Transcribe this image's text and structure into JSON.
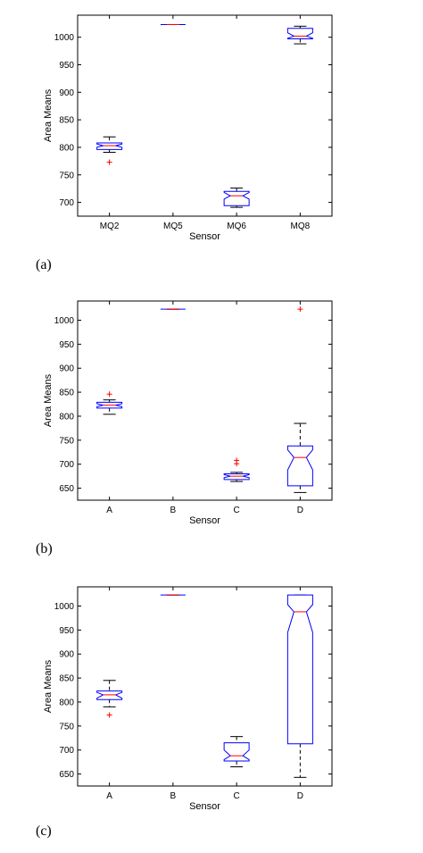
{
  "chart_data": [
    {
      "type": "box",
      "caption": "(a)",
      "xlabel": "Sensor",
      "ylabel": "Area Means",
      "ylim": [
        675,
        1040
      ],
      "yticks": [
        700,
        750,
        800,
        850,
        900,
        950,
        1000
      ],
      "categories": [
        "MQ2",
        "MQ5",
        "MQ6",
        "MQ8"
      ],
      "boxes": [
        {
          "min": 791,
          "q1": 796,
          "median": 803,
          "q3": 808,
          "max": 819,
          "notch_low": 800,
          "notch_high": 806,
          "outliers": [
            773
          ]
        },
        {
          "min": 1023,
          "q1": 1023,
          "median": 1023,
          "q3": 1023,
          "max": 1023,
          "notch_low": 1023,
          "notch_high": 1023,
          "outliers": []
        },
        {
          "min": 691,
          "q1": 694,
          "median": 712,
          "q3": 720,
          "max": 726,
          "notch_low": 706,
          "notch_high": 718,
          "outliers": []
        },
        {
          "min": 988,
          "q1": 997,
          "median": 1002,
          "q3": 1016,
          "max": 1020,
          "notch_low": 998,
          "notch_high": 1008,
          "outliers": []
        }
      ]
    },
    {
      "type": "box",
      "caption": "(b)",
      "xlabel": "Sensor",
      "ylabel": "Area Means",
      "ylim": [
        625,
        1040
      ],
      "yticks": [
        650,
        700,
        750,
        800,
        850,
        900,
        950,
        1000
      ],
      "categories": [
        "A",
        "B",
        "C",
        "D"
      ],
      "boxes": [
        {
          "min": 804,
          "q1": 817,
          "median": 823,
          "q3": 829,
          "max": 834,
          "notch_low": 820,
          "notch_high": 826,
          "outliers": [
            846
          ]
        },
        {
          "min": 1023,
          "q1": 1023,
          "median": 1023,
          "q3": 1023,
          "max": 1023,
          "notch_low": 1023,
          "notch_high": 1023,
          "outliers": []
        },
        {
          "min": 664,
          "q1": 668,
          "median": 675,
          "q3": 680,
          "max": 683,
          "notch_low": 672,
          "notch_high": 678,
          "outliers": [
            701,
            708
          ]
        },
        {
          "min": 641,
          "q1": 655,
          "median": 714,
          "q3": 738,
          "max": 785,
          "notch_low": 688,
          "notch_high": 730,
          "outliers": [
            1023
          ]
        }
      ]
    },
    {
      "type": "box",
      "caption": "(c)",
      "xlabel": "Sensor",
      "ylabel": "Area Means",
      "ylim": [
        625,
        1040
      ],
      "yticks": [
        650,
        700,
        750,
        800,
        850,
        900,
        950,
        1000
      ],
      "categories": [
        "A",
        "B",
        "C",
        "D"
      ],
      "boxes": [
        {
          "min": 790,
          "q1": 805,
          "median": 815,
          "q3": 823,
          "max": 845,
          "notch_low": 808,
          "notch_high": 820,
          "outliers": [
            773
          ]
        },
        {
          "min": 1023,
          "q1": 1023,
          "median": 1023,
          "q3": 1023,
          "max": 1023,
          "notch_low": 1023,
          "notch_high": 1023,
          "outliers": []
        },
        {
          "min": 665,
          "q1": 677,
          "median": 688,
          "q3": 715,
          "max": 728,
          "notch_low": 680,
          "notch_high": 700,
          "outliers": []
        },
        {
          "min": 643,
          "q1": 713,
          "median": 988,
          "q3": 1023,
          "max": 1023,
          "notch_low": 945,
          "notch_high": 1003,
          "outliers": []
        }
      ]
    }
  ]
}
